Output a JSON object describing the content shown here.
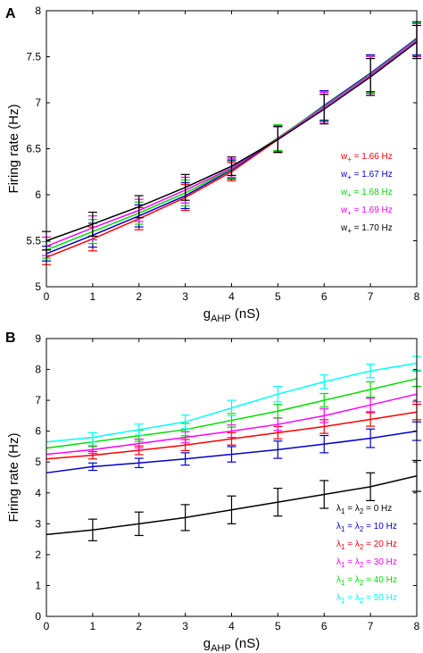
{
  "chart_data": [
    {
      "panel": "A",
      "type": "line",
      "xlabel_main": "g",
      "xlabel_sub": "AHP",
      "xlabel_unit": " (nS)",
      "ylabel": "Firing rate  (Hz)",
      "xlim": [
        0,
        8
      ],
      "ylim": [
        5,
        8
      ],
      "x_ticks": [
        "0",
        "1",
        "2",
        "3",
        "4",
        "5",
        "6",
        "7",
        "8"
      ],
      "y_ticks": [
        "5",
        "5.5",
        "6",
        "6.5",
        "7",
        "7.5",
        "8"
      ],
      "y_tick_values": [
        5,
        5.5,
        6,
        6.5,
        7,
        7.5,
        8
      ],
      "x": [
        0,
        1,
        2,
        3,
        4,
        5,
        6,
        7,
        8
      ],
      "legend_position": "right",
      "series": [
        {
          "name_main": "w",
          "name_sub": "+",
          "name_rest": " = 1.66 Hz",
          "color": "#ff0000",
          "values": [
            5.32,
            5.52,
            5.74,
            5.97,
            6.25,
            6.6,
            6.97,
            7.32,
            7.69
          ],
          "err": [
            0.08,
            0.13,
            0.12,
            0.14,
            0.1,
            0.14,
            0.16,
            0.2,
            0.18
          ]
        },
        {
          "name_main": "w",
          "name_sub": "+",
          "name_rest": " = 1.67 Hz",
          "color": "#0000cc",
          "values": [
            5.36,
            5.56,
            5.77,
            5.99,
            6.27,
            6.61,
            6.97,
            7.32,
            7.7
          ],
          "err": [
            0.08,
            0.13,
            0.12,
            0.14,
            0.1,
            0.14,
            0.16,
            0.2,
            0.18
          ]
        },
        {
          "name_main": "w",
          "name_sub": "+",
          "name_rest": " = 1.68 Hz",
          "color": "#00dd00",
          "values": [
            5.4,
            5.6,
            5.8,
            6.02,
            6.28,
            6.62,
            6.96,
            7.31,
            7.69
          ],
          "err": [
            0.09,
            0.13,
            0.12,
            0.14,
            0.1,
            0.14,
            0.16,
            0.2,
            0.18
          ]
        },
        {
          "name_main": "w",
          "name_sub": "+",
          "name_rest": " = 1.69 Hz",
          "color": "#ff00ff",
          "values": [
            5.44,
            5.64,
            5.83,
            6.05,
            6.29,
            6.61,
            6.95,
            7.3,
            7.68
          ],
          "err": [
            0.1,
            0.13,
            0.12,
            0.14,
            0.1,
            0.14,
            0.16,
            0.2,
            0.18
          ]
        },
        {
          "name_main": "w",
          "name_sub": "+",
          "name_rest": " = 1.70 Hz",
          "color": "#000000",
          "values": [
            5.5,
            5.68,
            5.87,
            6.08,
            6.31,
            6.6,
            6.93,
            7.28,
            7.66
          ],
          "err": [
            0.1,
            0.13,
            0.12,
            0.14,
            0.1,
            0.14,
            0.16,
            0.2,
            0.18
          ]
        }
      ]
    },
    {
      "panel": "B",
      "type": "line",
      "xlabel_main": "g",
      "xlabel_sub": "AHP",
      "xlabel_unit": " (nS)",
      "ylabel": "Firing rate (Hz)",
      "xlim": [
        0,
        8
      ],
      "ylim": [
        0,
        9
      ],
      "x_ticks": [
        "0",
        "1",
        "2",
        "3",
        "4",
        "5",
        "6",
        "7",
        "8"
      ],
      "y_ticks": [
        "0",
        "1",
        "2",
        "3",
        "4",
        "5",
        "6",
        "7",
        "8",
        "9"
      ],
      "y_tick_values": [
        0,
        1,
        2,
        3,
        4,
        5,
        6,
        7,
        8,
        9
      ],
      "x": [
        0,
        1,
        2,
        3,
        4,
        5,
        6,
        7,
        8
      ],
      "legend_position": "bottom-right",
      "series": [
        {
          "name_a": "λ",
          "sub_a": "1",
          "name_b": " = λ",
          "sub_b": "2",
          "name_rest": " = 0 Hz",
          "color": "#000000",
          "values": [
            2.65,
            2.8,
            3.0,
            3.2,
            3.45,
            3.7,
            3.95,
            4.2,
            4.55
          ],
          "err": [
            0.0,
            0.35,
            0.38,
            0.42,
            0.45,
            0.45,
            0.45,
            0.45,
            0.5
          ]
        },
        {
          "name_a": "λ",
          "sub_a": "1",
          "name_b": " = λ",
          "sub_b": "2",
          "name_rest": " = 10 Hz",
          "color": "#0000cc",
          "values": [
            4.65,
            4.85,
            4.97,
            5.1,
            5.25,
            5.4,
            5.58,
            5.77,
            6.0
          ],
          "err": [
            0.0,
            0.12,
            0.15,
            0.2,
            0.25,
            0.28,
            0.28,
            0.3,
            0.3
          ]
        },
        {
          "name_a": "λ",
          "sub_a": "1",
          "name_b": " = λ",
          "sub_b": "2",
          "name_rest": " = 20 Hz",
          "color": "#ff0000",
          "values": [
            5.1,
            5.22,
            5.38,
            5.55,
            5.75,
            5.95,
            6.15,
            6.38,
            6.62
          ],
          "err": [
            0.0,
            0.12,
            0.14,
            0.18,
            0.2,
            0.2,
            0.22,
            0.22,
            0.25
          ]
        },
        {
          "name_a": "λ",
          "sub_a": "1",
          "name_b": " = λ",
          "sub_b": "2",
          "name_rest": " = 30 Hz",
          "color": "#ff00ff",
          "values": [
            5.25,
            5.4,
            5.6,
            5.8,
            6.0,
            6.22,
            6.5,
            6.85,
            7.2
          ],
          "err": [
            0.0,
            0.12,
            0.14,
            0.18,
            0.2,
            0.2,
            0.22,
            0.22,
            0.25
          ]
        },
        {
          "name_a": "λ",
          "sub_a": "1",
          "name_b": " = λ",
          "sub_b": "2",
          "name_rest": " = 40 Hz",
          "color": "#00dd00",
          "values": [
            5.45,
            5.65,
            5.85,
            6.05,
            6.35,
            6.65,
            7.0,
            7.35,
            7.7
          ],
          "err": [
            0.0,
            0.15,
            0.18,
            0.2,
            0.22,
            0.22,
            0.22,
            0.25,
            0.25
          ]
        },
        {
          "name_a": "λ",
          "sub_a": "1",
          "name_b": " = λ",
          "sub_b": "2",
          "name_rest": " = 50 Hz",
          "color": "#00ffff",
          "values": [
            5.65,
            5.8,
            6.05,
            6.3,
            6.75,
            7.2,
            7.6,
            7.95,
            8.2
          ],
          "err": [
            0.0,
            0.15,
            0.18,
            0.22,
            0.25,
            0.25,
            0.22,
            0.22,
            0.22
          ]
        }
      ]
    }
  ]
}
